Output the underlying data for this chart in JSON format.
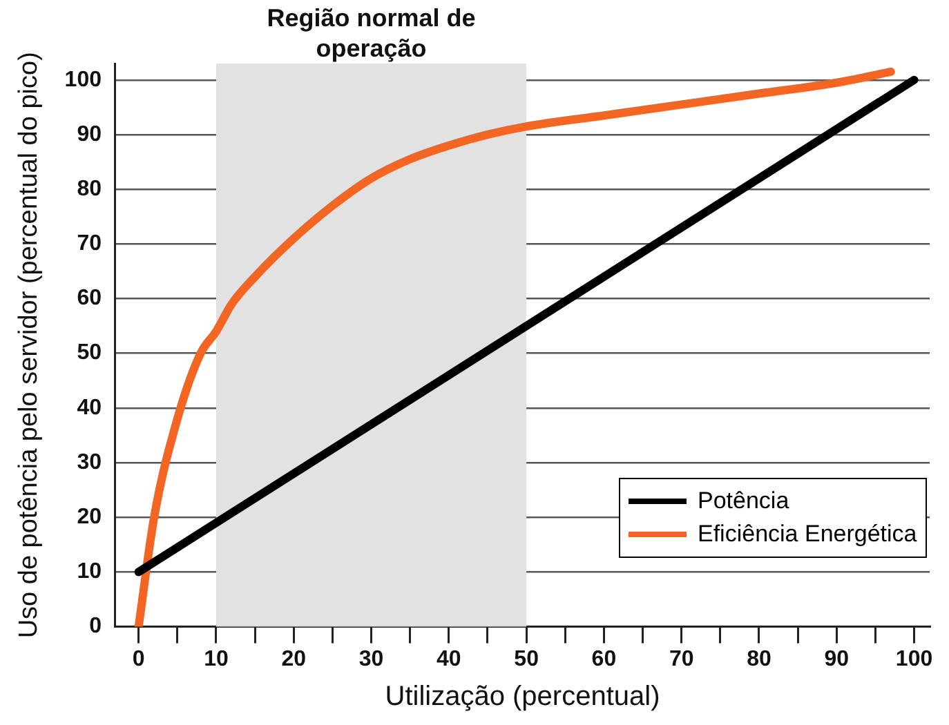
{
  "chart_data": {
    "type": "line",
    "xlabel": "Utilização (percentual)",
    "ylabel": "Uso de potência pelo servidor (percentual do pico)",
    "xlim": [
      -3,
      102
    ],
    "xticks": [
      0,
      {
        "value": 5,
        "label": null
      },
      10,
      {
        "value": 15,
        "label": null
      },
      20,
      {
        "value": 25,
        "label": null
      },
      30,
      {
        "value": 35,
        "label": null
      },
      40,
      {
        "value": 45,
        "label": null
      },
      50,
      {
        "value": 55,
        "label": null
      },
      60,
      {
        "value": 65,
        "label": null
      },
      70,
      {
        "value": 75,
        "label": null
      },
      80,
      {
        "value": 85,
        "label": null
      },
      90,
      {
        "value": 95,
        "label": null
      },
      100
    ],
    "ylim": [
      0,
      103
    ],
    "yticks": [
      0,
      10,
      20,
      30,
      40,
      50,
      60,
      70,
      80,
      90,
      100
    ],
    "grid": "y",
    "legend": "bottom right",
    "marker": "none",
    "line_style": "solid",
    "bands": [
      {
        "axis": "x",
        "from": 10,
        "to": 50,
        "label": "Região normal de operação",
        "color": "#e2e2e2"
      }
    ],
    "series": [
      {
        "name": "Potência",
        "color": "#000000",
        "x": [
          0,
          100
        ],
        "values": [
          10,
          100
        ]
      },
      {
        "name": "Eficiência Energética",
        "color": "#f26522",
        "x": [
          0,
          2,
          5,
          8,
          10,
          12,
          15,
          20,
          25,
          30,
          35,
          40,
          45,
          50,
          60,
          70,
          80,
          90,
          97
        ],
        "values": [
          0,
          20,
          38,
          50,
          54,
          59,
          64,
          71,
          77,
          82,
          85.5,
          88,
          90,
          91.5,
          93.5,
          95.5,
          97.5,
          99.5,
          101.5
        ]
      }
    ]
  }
}
